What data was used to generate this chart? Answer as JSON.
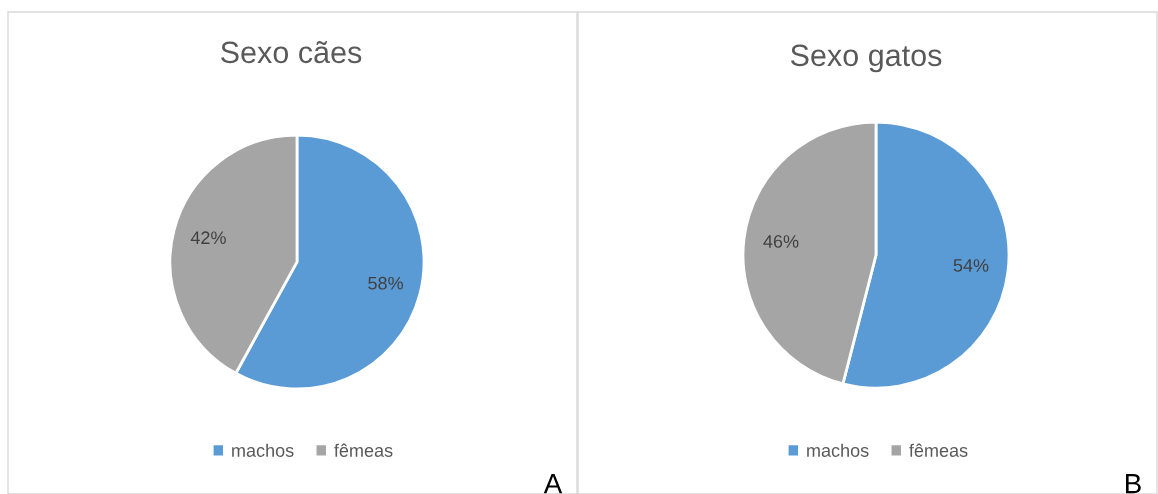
{
  "chart_data": [
    {
      "type": "pie",
      "title": "Sexo cães",
      "categories": [
        "machos",
        "fêmeas"
      ],
      "values": [
        58,
        42
      ],
      "colors": [
        "#5b9bd5",
        "#a5a5a5"
      ],
      "value_labels": [
        "58%",
        "42%"
      ],
      "legend": "bottom",
      "annotations": [
        "A"
      ]
    },
    {
      "type": "pie",
      "title": "Sexo gatos",
      "categories": [
        "machos",
        "fêmeas"
      ],
      "values": [
        54,
        46
      ],
      "colors": [
        "#5b9bd5",
        "#a5a5a5"
      ],
      "value_labels": [
        "54%",
        "46%"
      ],
      "legend": "bottom",
      "annotations": [
        "B"
      ]
    }
  ]
}
